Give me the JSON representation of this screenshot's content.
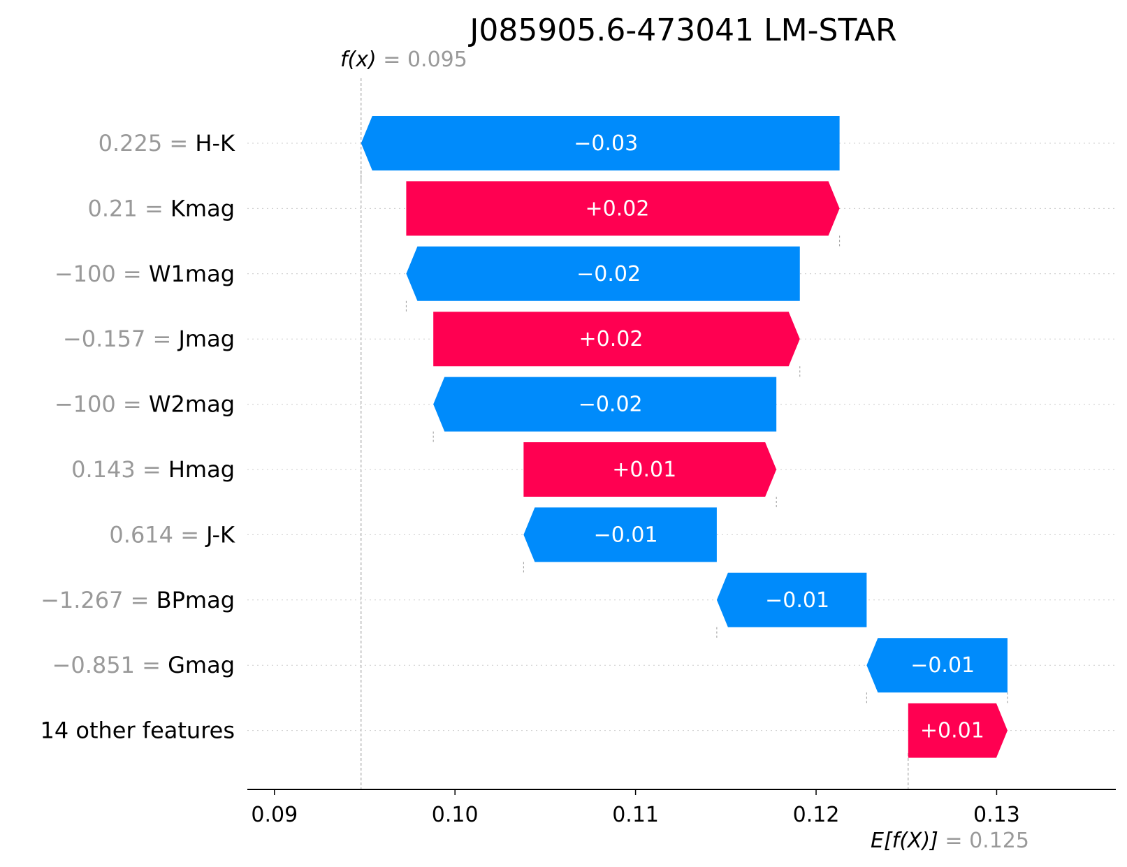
{
  "chart_data": {
    "type": "waterfall",
    "title": "J085905.6-473041 LM-STAR",
    "fx": {
      "label": "f(x)",
      "value_text": " = 0.095",
      "value": 0.0948
    },
    "base": {
      "label": "E[f(X)]",
      "value_text": " = 0.125",
      "value": 0.1251
    },
    "xlim": [
      0.0885,
      0.1366
    ],
    "xticks": [
      {
        "value": 0.09,
        "label": "0.09"
      },
      {
        "value": 0.1,
        "label": "0.10"
      },
      {
        "value": 0.11,
        "label": "0.11"
      },
      {
        "value": 0.12,
        "label": "0.12"
      },
      {
        "value": 0.13,
        "label": "0.13"
      }
    ],
    "features": [
      {
        "value_label": "0.225",
        "name": "H-K",
        "start": 0.1213,
        "end": 0.0948,
        "label": "−0.03"
      },
      {
        "value_label": "0.21",
        "name": "Kmag",
        "start": 0.0973,
        "end": 0.1213,
        "label": "+0.02"
      },
      {
        "value_label": "−100",
        "name": "W1mag",
        "start": 0.1191,
        "end": 0.0973,
        "label": "−0.02"
      },
      {
        "value_label": "−0.157",
        "name": "Jmag",
        "start": 0.0988,
        "end": 0.1191,
        "label": "+0.02"
      },
      {
        "value_label": "−100",
        "name": "W2mag",
        "start": 0.1178,
        "end": 0.0988,
        "label": "−0.02"
      },
      {
        "value_label": "0.143",
        "name": "Hmag",
        "start": 0.1038,
        "end": 0.1178,
        "label": "+0.01"
      },
      {
        "value_label": "0.614",
        "name": "J-K",
        "start": 0.1145,
        "end": 0.1038,
        "label": "−0.01"
      },
      {
        "value_label": "−1.267",
        "name": "BPmag",
        "start": 0.1228,
        "end": 0.1145,
        "label": "−0.01"
      },
      {
        "value_label": "−0.851",
        "name": "Gmag",
        "start": 0.1306,
        "end": 0.1228,
        "label": "−0.01"
      },
      {
        "value_label": "",
        "name": "14 other features",
        "start": 0.1251,
        "end": 0.1306,
        "label": "+0.01"
      }
    ],
    "colors": {
      "positive": "#ff0051",
      "negative": "#008bfb",
      "text_value": "#999999",
      "text": "#000000"
    }
  }
}
